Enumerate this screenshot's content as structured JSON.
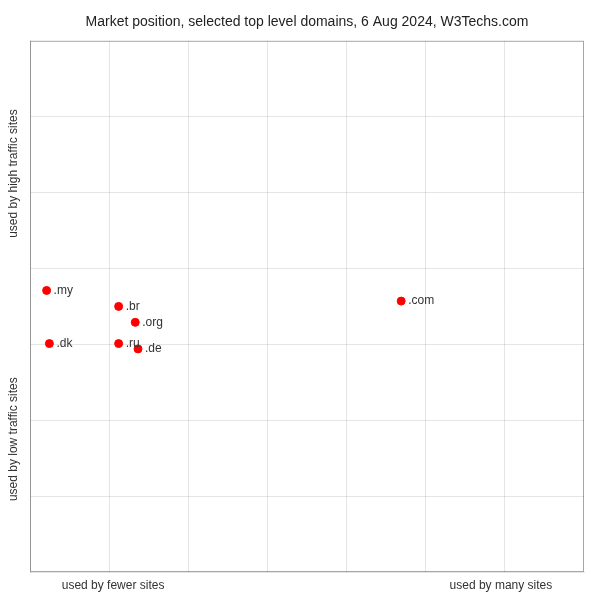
{
  "chart_data": {
    "type": "scatter",
    "title": "Market position, selected top level domains, 6 Aug 2024, W3Techs.com",
    "xlabel": [
      "used by fewer sites",
      "used by many sites"
    ],
    "ylabel": [
      "used by high traffic sites",
      "used by low traffic sites"
    ],
    "labels": [
      ".my",
      ".dk",
      ".br",
      ".org",
      ".ru",
      ".de",
      ".com"
    ],
    "x": [
      3.0,
      3.5,
      16.0,
      19.0,
      16.0,
      19.5,
      67.0
    ],
    "values": [
      53.0,
      43.0,
      50.0,
      47.0,
      43.0,
      42.0,
      51.0
    ],
    "color": "#ff0000",
    "xlim": [
      0,
      100
    ],
    "ylim": [
      0,
      100
    ],
    "xticks": [
      14.28,
      28.57,
      42.85,
      57.14,
      71.42,
      85.71
    ],
    "yticks": [
      14.28,
      28.57,
      42.85,
      57.14,
      71.42,
      85.71
    ],
    "grid": true,
    "tick_labels": false
  }
}
